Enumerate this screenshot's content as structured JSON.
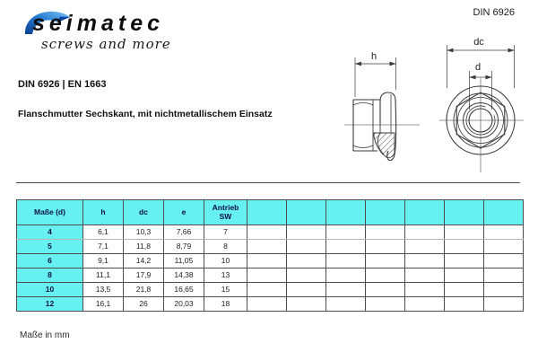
{
  "header": {
    "doc_number": "DIN 6926",
    "logo_brand": "seimatec",
    "logo_tagline": "screws and more"
  },
  "info": {
    "standard_line": "DIN 6926 | EN 1663",
    "product_title": "Flanschmutter Sechskant, mit nichtmetallischem Einsatz"
  },
  "drawing": {
    "labels": {
      "h": "h",
      "dc": "dc",
      "d": "d"
    }
  },
  "table": {
    "headers": [
      "Maße (d)",
      "h",
      "dc",
      "e",
      "Antrieb\nSW"
    ],
    "empty_columns": 7,
    "rows": [
      {
        "size": "4",
        "h": "6,1",
        "dc": "10,3",
        "e": "7,66",
        "sw": "7"
      },
      {
        "size": "5",
        "h": "7,1",
        "dc": "11,8",
        "e": "8,79",
        "sw": "8"
      },
      {
        "size": "6",
        "h": "9,1",
        "dc": "14,2",
        "e": "11,05",
        "sw": "10"
      },
      {
        "size": "8",
        "h": "11,1",
        "dc": "17,9",
        "e": "14,38",
        "sw": "13"
      },
      {
        "size": "10",
        "h": "13,5",
        "dc": "21,8",
        "e": "16,65",
        "sw": "15"
      },
      {
        "size": "12",
        "h": "16,1",
        "dc": "26",
        "e": "20,03",
        "sw": "18"
      }
    ]
  },
  "footer": {
    "note": "Maße in mm"
  },
  "colors": {
    "table_header_bg": "#66F0F0",
    "table_border": "#4d4d4d",
    "logo_blue_dark": "#0a3f8f",
    "logo_blue_light": "#7cc4f8"
  }
}
